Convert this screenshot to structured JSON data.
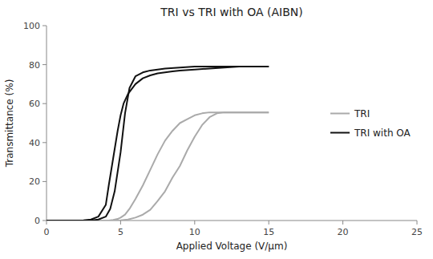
{
  "chart_data": {
    "type": "line",
    "title": "TRI vs TRI with OA (AIBN)",
    "x_label": "Applied Voltage (V/μm)",
    "y_label": "Transmittance (%)",
    "xlim": [
      0,
      25
    ],
    "ylim": [
      0,
      100
    ],
    "xticks": [
      0,
      5,
      10,
      15,
      20,
      25
    ],
    "yticks": [
      0,
      20,
      40,
      60,
      80,
      100
    ],
    "grid": false,
    "legend": "right",
    "series": [
      {
        "name": "TRI",
        "color": "#aaaaaa",
        "x": [
          0,
          1,
          2,
          3,
          3.5,
          4,
          4.2,
          4.5,
          4.8,
          5.0,
          5.3,
          5.6,
          6.0,
          6.5,
          7.0,
          7.5,
          8.0,
          8.5,
          9.0,
          9.5,
          10.0,
          10.5,
          11.0,
          12.0,
          13.0,
          14.0,
          15.0
        ],
        "values": [
          0,
          0,
          0,
          0,
          0,
          0,
          0,
          0.3,
          0.8,
          1.5,
          3,
          6,
          11,
          18,
          26,
          34,
          41,
          46,
          50,
          52,
          54,
          55,
          55.5,
          55.5,
          55.5,
          55.5,
          55.5
        ]
      },
      {
        "color": "#aaaaaa",
        "x": [
          15.0,
          14.5,
          14.0,
          13.5,
          13.0,
          12.0,
          11.5,
          11.0,
          10.5,
          10.0,
          9.5,
          9.0,
          8.5,
          8.0,
          7.5,
          7.0,
          6.5,
          6.0,
          5.5,
          5.0,
          4.5,
          4.0,
          3.5,
          3.0,
          2.0,
          1.0,
          0
        ],
        "values": [
          55.5,
          55.5,
          55.5,
          55.5,
          55.5,
          55.5,
          55,
          53,
          49,
          43,
          36,
          28,
          22,
          15,
          10,
          5.5,
          3,
          1.5,
          0.5,
          0.1,
          0,
          0,
          0,
          0,
          0,
          0,
          0
        ]
      },
      {
        "name": "TRI with OA",
        "color": "#111111",
        "x": [
          0,
          1,
          2,
          2.5,
          3.0,
          3.5,
          4.0,
          4.3,
          4.6,
          5.0,
          5.3,
          5.6,
          6.0,
          6.5,
          7.0,
          7.5,
          8.0,
          9.0,
          10.0,
          12.0,
          14.0,
          15.0
        ],
        "values": [
          0,
          0,
          0,
          0,
          0,
          0.5,
          2,
          6,
          15,
          35,
          55,
          68,
          74,
          76,
          77,
          77.5,
          78,
          78.5,
          79,
          79,
          79,
          79
        ]
      },
      {
        "color": "#111111",
        "x": [
          15.0,
          14.0,
          13.0,
          12.0,
          11.0,
          10.0,
          9.0,
          8.5,
          8.0,
          7.5,
          7.0,
          6.5,
          6.0,
          5.5,
          5.2,
          5.0,
          4.8,
          4.5,
          4.2,
          4.0,
          3.5,
          3.0,
          2.5,
          2.0,
          1.0,
          0
        ],
        "values": [
          79,
          79,
          79,
          78.5,
          78,
          77.5,
          77,
          76.5,
          76,
          75.5,
          74.5,
          73,
          70,
          65,
          60,
          54,
          46,
          32,
          18,
          8,
          2,
          0.5,
          0.1,
          0,
          0,
          0
        ]
      }
    ]
  }
}
